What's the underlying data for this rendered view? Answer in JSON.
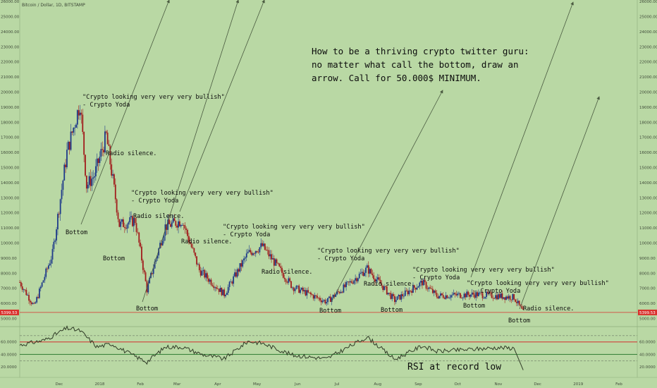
{
  "header": {
    "symbol_title": "Bitcoin / Dollar, 1D, BITSTAMP"
  },
  "price_axis": {
    "ticks": [
      "26000.00",
      "25000.00",
      "24000.00",
      "23000.00",
      "22000.00",
      "21000.00",
      "20000.00",
      "19000.00",
      "18000.00",
      "17000.00",
      "16000.00",
      "15000.00",
      "14000.00",
      "13000.00",
      "12000.00",
      "11000.00",
      "10000.00",
      "9000.00",
      "8000.00",
      "7000.00",
      "6000.00",
      "5000.00"
    ],
    "last_price_label": "5399.53"
  },
  "rsi_axis": {
    "ticks": [
      "60.0000",
      "40.0000",
      "20.0000"
    ]
  },
  "time_axis": {
    "labels": [
      "Dec",
      "2018",
      "Feb",
      "Mar",
      "Apr",
      "May",
      "Jun",
      "Jul",
      "Aug",
      "Sep",
      "Oct",
      "Nov",
      "Dec",
      "2019",
      "Feb"
    ]
  },
  "colors": {
    "background": "#b9d8a4",
    "candle_up": "#1e3a8a",
    "candle_down": "#a11c1c",
    "rsi_line": "#2f3b26",
    "rsi_upper": "#d32f2f",
    "rsi_lower": "#2e7d32",
    "last_price": "#d9302c",
    "arrows": "#4a5a40"
  },
  "annotations": {
    "headline": [
      "How to be a thriving crypto twitter guru:",
      "no matter what call the bottom, draw an",
      "arrow. Call for 50.000$ MINIMUM."
    ],
    "quote_line1": "\"Crypto looking very very very bullish\"",
    "quote_line2": "- Crypto Yoda",
    "bottom": "Bottom",
    "radio_silence": "Radio silence.",
    "rsi_note": "RSI at record low"
  },
  "chart_data": [
    {
      "type": "candlestick",
      "title": "Bitcoin / Dollar, 1D, BITSTAMP",
      "ylim": [
        4600,
        26100
      ],
      "last_price": 5399.53,
      "x_range": [
        "2017-11-01",
        "2019-02-15"
      ],
      "approx_close_path": [
        [
          "2017-11-01",
          7400
        ],
        [
          "2017-11-12",
          5800
        ],
        [
          "2017-11-26",
          9300
        ],
        [
          "2017-12-07",
          16000
        ],
        [
          "2017-12-17",
          19300
        ],
        [
          "2017-12-22",
          13800
        ],
        [
          "2017-12-28",
          14500
        ],
        [
          "2018-01-06",
          17100
        ],
        [
          "2018-01-16",
          11200
        ],
        [
          "2018-01-28",
          11500
        ],
        [
          "2018-02-06",
          6900
        ],
        [
          "2018-02-20",
          11100
        ],
        [
          "2018-03-05",
          11500
        ],
        [
          "2018-03-18",
          8200
        ],
        [
          "2018-04-06",
          6600
        ],
        [
          "2018-04-24",
          9300
        ],
        [
          "2018-05-05",
          9800
        ],
        [
          "2018-05-28",
          7100
        ],
        [
          "2018-06-23",
          6100
        ],
        [
          "2018-07-24",
          8300
        ],
        [
          "2018-08-14",
          6200
        ],
        [
          "2018-09-04",
          7400
        ],
        [
          "2018-09-15",
          6500
        ],
        [
          "2018-10-15",
          6600
        ],
        [
          "2018-11-13",
          6400
        ],
        [
          "2018-11-20",
          5399.53
        ]
      ]
    },
    {
      "type": "line",
      "title": "",
      "ylim": [
        10,
        80
      ],
      "reference_lines": [
        70,
        30
      ],
      "levels": [
        60,
        40
      ],
      "values": [
        [
          "2017-11-01",
          55
        ],
        [
          "2017-11-20",
          63
        ],
        [
          "2017-12-07",
          82
        ],
        [
          "2017-12-17",
          78
        ],
        [
          "2017-12-30",
          52
        ],
        [
          "2018-01-10",
          57
        ],
        [
          "2018-01-25",
          40
        ],
        [
          "2018-02-06",
          28
        ],
        [
          "2018-02-20",
          52
        ],
        [
          "2018-03-05",
          52
        ],
        [
          "2018-03-20",
          40
        ],
        [
          "2018-04-06",
          33
        ],
        [
          "2018-04-24",
          61
        ],
        [
          "2018-05-05",
          58
        ],
        [
          "2018-05-28",
          39
        ],
        [
          "2018-06-23",
          33
        ],
        [
          "2018-07-24",
          68
        ],
        [
          "2018-08-14",
          32
        ],
        [
          "2018-09-04",
          54
        ],
        [
          "2018-09-15",
          45
        ],
        [
          "2018-10-10",
          48
        ],
        [
          "2018-11-01",
          51
        ],
        [
          "2018-11-13",
          50
        ],
        [
          "2018-11-20",
          15
        ]
      ]
    }
  ]
}
